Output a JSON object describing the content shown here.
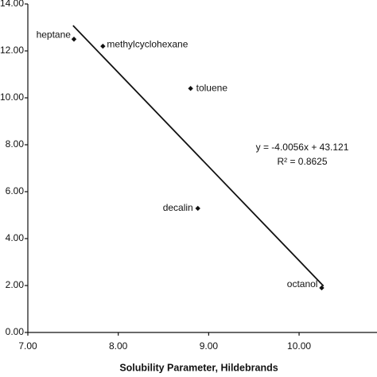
{
  "chart_data": {
    "type": "scatter",
    "x_label": "Solubility Parameter, Hildebrands",
    "series": [
      {
        "name": null,
        "color": "#111111",
        "labels": [
          "heptane",
          "methylcyclohexane",
          "toluene",
          "decalin",
          "octanol"
        ],
        "x": [
          7.51,
          7.83,
          8.8,
          8.88,
          10.25
        ],
        "values": [
          12.5,
          12.2,
          10.4,
          5.29,
          1.9
        ]
      }
    ],
    "trendline": {
      "x": [
        7.5,
        10.27
      ],
      "y": [
        13.08,
        1.98
      ],
      "color": "#111111"
    },
    "annotations": [
      "y = -4.0056x + 43.121",
      "R² = 0.8625"
    ],
    "xlim": [
      7,
      10.8
    ],
    "xticks": [
      {
        "value": 7,
        "label": "7.00"
      },
      {
        "value": 8,
        "label": "8.00"
      },
      {
        "value": 9,
        "label": "9.00"
      },
      {
        "value": 10,
        "label": "10.00"
      }
    ],
    "ylim": [
      0,
      14
    ],
    "yticks": [
      {
        "value": 0,
        "label": "0.00"
      },
      {
        "value": 2,
        "label": "2.00"
      },
      {
        "value": 4,
        "label": "4.00"
      },
      {
        "value": 6,
        "label": "6.00"
      },
      {
        "value": 8,
        "label": "8.00"
      },
      {
        "value": 10,
        "label": "10.00"
      },
      {
        "value": 12,
        "label": "12.00"
      },
      {
        "value": 14,
        "label": "14.00"
      }
    ],
    "grid": false
  }
}
